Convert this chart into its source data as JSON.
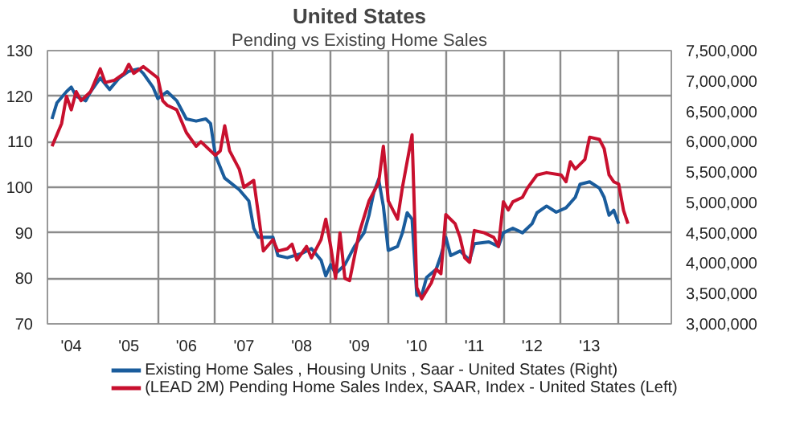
{
  "chart_data": {
    "type": "line",
    "title": "United States",
    "subtitle": "Pending vs Existing Home Sales",
    "xlim": [
      "2004-02",
      "2014-12"
    ],
    "xticks": [
      {
        "value": "2004-07",
        "label": "'04"
      },
      {
        "value": "2005-07",
        "label": "'05"
      },
      {
        "value": "2006-07",
        "label": "'06"
      },
      {
        "value": "2007-07",
        "label": "'07"
      },
      {
        "value": "2008-07",
        "label": "'08"
      },
      {
        "value": "2009-07",
        "label": "'09"
      },
      {
        "value": "2010-07",
        "label": "'10"
      },
      {
        "value": "2011-07",
        "label": "'11"
      },
      {
        "value": "2012-07",
        "label": "'12"
      },
      {
        "value": "2013-07",
        "label": "'13"
      },
      {
        "value": "2006-01",
        "label": null
      },
      {
        "value": "2007-01",
        "label": null
      },
      {
        "value": "2008-01",
        "label": null
      },
      {
        "value": "2009-01",
        "label": null
      },
      {
        "value": "2010-01",
        "label": null
      },
      {
        "value": "2011-01",
        "label": null
      },
      {
        "value": "2012-01",
        "label": null
      },
      {
        "value": "2013-01",
        "label": null
      },
      {
        "value": "2014-01",
        "label": null
      }
    ],
    "ylim": [
      70,
      130
    ],
    "yticks": [
      70,
      80,
      90,
      100,
      110,
      120,
      130
    ],
    "y2lim": [
      3000000,
      7500000
    ],
    "y2ticks": [
      {
        "value": 3000000,
        "label": "3,000,000"
      },
      {
        "value": 3500000,
        "label": "3,500,000"
      },
      {
        "value": 4000000,
        "label": "4,000,000"
      },
      {
        "value": 4500000,
        "label": "4,500,000"
      },
      {
        "value": 5000000,
        "label": "5,000,000"
      },
      {
        "value": 5500000,
        "label": "5,500,000"
      },
      {
        "value": 6000000,
        "label": "6,000,000"
      },
      {
        "value": 6500000,
        "label": "6,500,000"
      },
      {
        "value": 7000000,
        "label": "7,000,000"
      },
      {
        "value": 7500000,
        "label": "7,500,000"
      }
    ],
    "grid": true,
    "legend": "bottom",
    "line_style": "solid",
    "series": [
      {
        "name": "Existing Home Sales , Housing Units , Saar - United States  (Right)",
        "color": "#1a5c9c",
        "axis": "y2",
        "x": [
          "2004-03",
          "2004-04",
          "2004-06",
          "2004-07",
          "2004-08",
          "2004-10",
          "2004-11",
          "2005-01",
          "2005-03",
          "2005-05",
          "2005-07",
          "2005-09",
          "2005-10",
          "2005-12",
          "2006-01",
          "2006-03",
          "2006-05",
          "2006-07",
          "2006-09",
          "2006-11",
          "2006-12",
          "2007-01",
          "2007-03",
          "2007-06",
          "2007-08",
          "2007-09",
          "2007-10",
          "2008-01",
          "2008-02",
          "2008-04",
          "2008-07",
          "2008-09",
          "2008-11",
          "2008-12",
          "2009-01",
          "2009-02",
          "2009-04",
          "2009-06",
          "2009-08",
          "2009-09",
          "2009-10",
          "2009-11",
          "2009-12",
          "2010-01",
          "2010-03",
          "2010-04",
          "2010-05",
          "2010-06",
          "2010-07",
          "2010-08",
          "2010-09",
          "2010-11",
          "2010-12",
          "2011-01",
          "2011-02",
          "2011-04",
          "2011-06",
          "2011-07",
          "2011-10",
          "2011-12",
          "2012-01",
          "2012-03",
          "2012-05",
          "2012-06",
          "2012-07",
          "2012-08",
          "2012-10",
          "2012-12",
          "2013-02",
          "2013-04",
          "2013-05",
          "2013-07",
          "2013-09",
          "2013-10",
          "2013-11",
          "2013-12",
          "2014-01"
        ],
        "values": [
          6375000,
          6640000,
          6825000,
          6900000,
          6750000,
          6675000,
          6825000,
          7050000,
          6860000,
          7050000,
          7160000,
          7200000,
          7125000,
          6900000,
          6710000,
          6825000,
          6675000,
          6375000,
          6340000,
          6375000,
          6300000,
          5775000,
          5400000,
          5210000,
          5025000,
          4575000,
          4425000,
          4425000,
          4125000,
          4090000,
          4160000,
          4240000,
          4050000,
          3790000,
          3975000,
          3825000,
          3975000,
          4275000,
          4500000,
          4790000,
          5160000,
          5380000,
          4940000,
          4210000,
          4275000,
          4500000,
          4830000,
          4725000,
          3470000,
          3470000,
          3765000,
          3900000,
          4125000,
          4425000,
          4125000,
          4200000,
          4050000,
          4320000,
          4350000,
          4275000,
          4500000,
          4575000,
          4500000,
          4575000,
          4650000,
          4830000,
          4940000,
          4840000,
          4910000,
          5085000,
          5300000,
          5340000,
          5235000,
          5085000,
          4790000,
          4870000,
          4650000
        ]
      },
      {
        "name": "(LEAD 2M) Pending Home Sales Index, SAAR, Index - United States  (Left)",
        "color": "#c8102e",
        "x": [
          "2004-03",
          "2004-05",
          "2004-06",
          "2004-07",
          "2004-08",
          "2004-09",
          "2004-11",
          "2005-01",
          "2005-02",
          "2005-04",
          "2005-06",
          "2005-07",
          "2005-08",
          "2005-10",
          "2006-01",
          "2006-02",
          "2006-03",
          "2006-05",
          "2006-07",
          "2006-09",
          "2006-10",
          "2007-01",
          "2007-02",
          "2007-03",
          "2007-04",
          "2007-06",
          "2007-07",
          "2007-09",
          "2007-10",
          "2007-11",
          "2008-01",
          "2008-02",
          "2008-04",
          "2008-05",
          "2008-06",
          "2008-08",
          "2008-09",
          "2008-11",
          "2008-12",
          "2009-01",
          "2009-02",
          "2009-03",
          "2009-04",
          "2009-05",
          "2009-07",
          "2009-09",
          "2009-11",
          "2009-12",
          "2010-01",
          "2010-03",
          "2010-04",
          "2010-06",
          "2010-07",
          "2010-08",
          "2010-10",
          "2010-11",
          "2010-12",
          "2011-01",
          "2011-03",
          "2011-04",
          "2011-05",
          "2011-06",
          "2011-07",
          "2011-09",
          "2011-11",
          "2011-12",
          "2012-01",
          "2012-02",
          "2012-03",
          "2012-05",
          "2012-06",
          "2012-08",
          "2012-10",
          "2013-01",
          "2013-02",
          "2013-03",
          "2013-04",
          "2013-06",
          "2013-07",
          "2013-09",
          "2013-10",
          "2013-11",
          "2013-12",
          "2014-01",
          "2014-02",
          "2014-03"
        ],
        "values": [
          109,
          114,
          120,
          117,
          121,
          119,
          121,
          126,
          123,
          123.5,
          125,
          127,
          125,
          126.5,
          124,
          119,
          118,
          117,
          112,
          109,
          110,
          107,
          108,
          113.5,
          108,
          104,
          100,
          101.5,
          94,
          86,
          88.5,
          86,
          86.5,
          87.5,
          84,
          87,
          84.5,
          88.5,
          93,
          87,
          80,
          90,
          80,
          79.5,
          90,
          97,
          101,
          109,
          97,
          93,
          100,
          111.5,
          78,
          75.5,
          79,
          82,
          81,
          94,
          92,
          89,
          84.5,
          83.5,
          90.5,
          90,
          89,
          87,
          96.8,
          95,
          96.8,
          97.8,
          99.8,
          102.7,
          103.2,
          102.7,
          101.2,
          105.6,
          104,
          106.1,
          111,
          110.5,
          108.5,
          102.7,
          101.2,
          100.7,
          94.9,
          92
        ]
      }
    ]
  }
}
